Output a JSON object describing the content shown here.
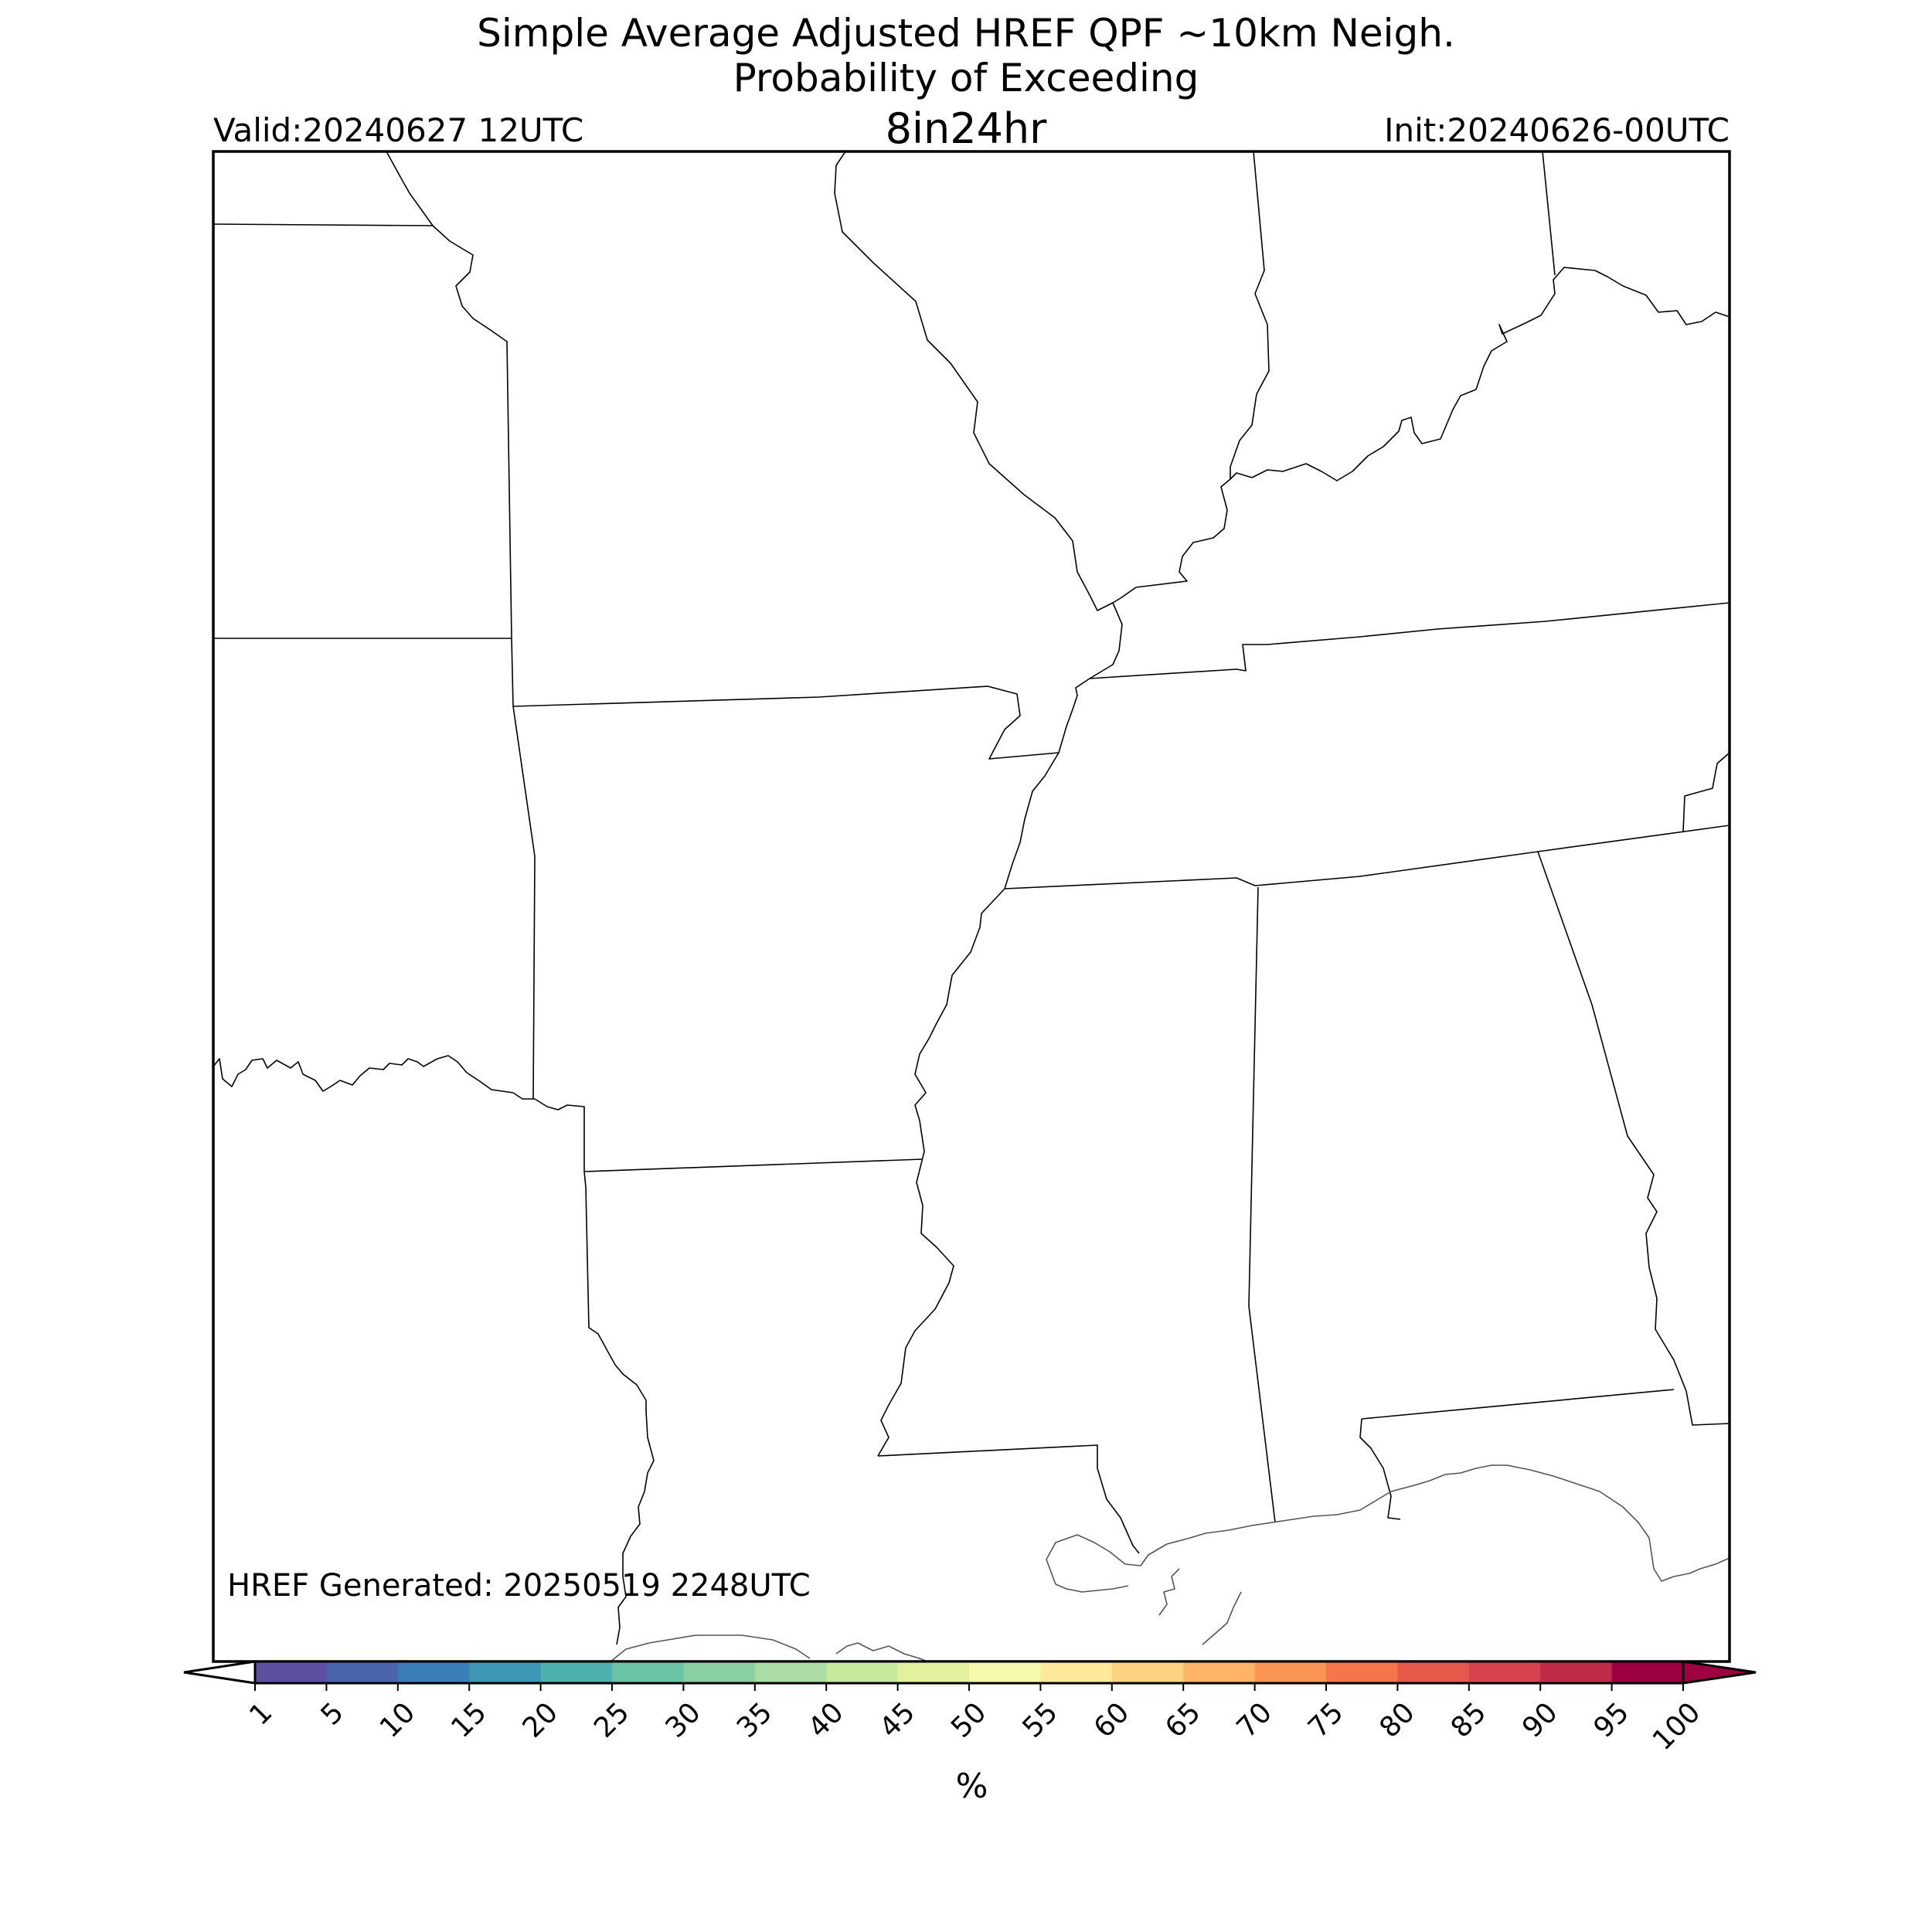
{
  "header": {
    "title_line1": "Simple Average Adjusted HREF QPF ~10km Neigh.",
    "title_line2": "Probability of Exceeding",
    "product": "8in24hr",
    "valid": "Valid:20240627 12UTC",
    "init": "Init:20240626-00UTC"
  },
  "map": {
    "generated": "HREF Generated: 20250519 2248UTC",
    "precip_field": "no probability contours shown (all below 1%)"
  },
  "colorbar": {
    "unit": "%",
    "levels": [
      "1",
      "5",
      "10",
      "15",
      "20",
      "25",
      "30",
      "35",
      "40",
      "45",
      "50",
      "55",
      "60",
      "65",
      "70",
      "75",
      "80",
      "85",
      "90",
      "95",
      "100"
    ],
    "colors": [
      "#5e4fa2",
      "#4a65ad",
      "#3a7eb9",
      "#3d97b5",
      "#4eb0ad",
      "#6ac3a5",
      "#8acfa4",
      "#aadca4",
      "#c8e89e",
      "#e3f19e",
      "#f6f8ab",
      "#fee89a",
      "#fed283",
      "#fdb466",
      "#fb9556",
      "#f5744a",
      "#e6594a",
      "#d6434e",
      "#c02b4a",
      "#9e0142"
    ],
    "under_color": "#ffffff",
    "over_color": "#9e0142"
  }
}
